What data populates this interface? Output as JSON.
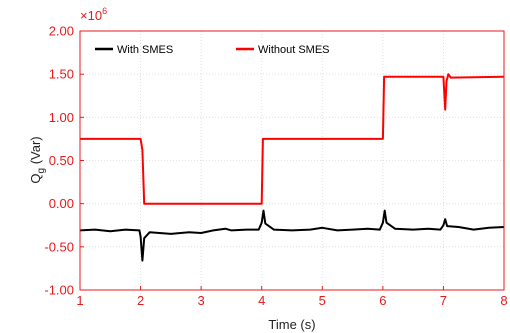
{
  "chart_data": {
    "type": "line",
    "xlabel": "Time (s)",
    "ylabel_main": "Q",
    "ylabel_sub": "g",
    "ylabel_unit": " (Var)",
    "y_multiplier_base": "×10",
    "y_multiplier_exp": "6",
    "xlim": [
      1,
      8
    ],
    "ylim": [
      -1.0,
      2.0
    ],
    "x_ticks": [
      1,
      2,
      3,
      4,
      5,
      6,
      7,
      8
    ],
    "x_tick_labels": [
      "1",
      "2",
      "3",
      "4",
      "5",
      "6",
      "7",
      "8"
    ],
    "y_ticks": [
      -1.0,
      -0.5,
      0.0,
      0.5,
      1.0,
      1.5,
      2.0
    ],
    "y_tick_labels": [
      "-1.00",
      "-0.50",
      "0.00",
      "0.50",
      "1.00",
      "1.50",
      "2.00"
    ],
    "grid": true,
    "legend_position": "top-left",
    "series": [
      {
        "name": "With SMES",
        "color": "#000000",
        "points": [
          [
            1.0,
            -0.31
          ],
          [
            1.25,
            -0.3
          ],
          [
            1.5,
            -0.32
          ],
          [
            1.75,
            -0.3
          ],
          [
            1.98,
            -0.31
          ],
          [
            2.0,
            -0.38
          ],
          [
            2.03,
            -0.66
          ],
          [
            2.06,
            -0.4
          ],
          [
            2.15,
            -0.33
          ],
          [
            2.5,
            -0.35
          ],
          [
            2.8,
            -0.33
          ],
          [
            3.0,
            -0.34
          ],
          [
            3.2,
            -0.31
          ],
          [
            3.4,
            -0.29
          ],
          [
            3.5,
            -0.31
          ],
          [
            3.75,
            -0.3
          ],
          [
            3.95,
            -0.3
          ],
          [
            4.0,
            -0.22
          ],
          [
            4.03,
            -0.08
          ],
          [
            4.06,
            -0.23
          ],
          [
            4.2,
            -0.3
          ],
          [
            4.5,
            -0.31
          ],
          [
            4.8,
            -0.3
          ],
          [
            5.0,
            -0.28
          ],
          [
            5.25,
            -0.31
          ],
          [
            5.5,
            -0.3
          ],
          [
            5.75,
            -0.29
          ],
          [
            5.95,
            -0.3
          ],
          [
            6.0,
            -0.22
          ],
          [
            6.03,
            -0.08
          ],
          [
            6.06,
            -0.22
          ],
          [
            6.2,
            -0.29
          ],
          [
            6.5,
            -0.3
          ],
          [
            6.75,
            -0.29
          ],
          [
            6.95,
            -0.3
          ],
          [
            7.0,
            -0.25
          ],
          [
            7.03,
            -0.18
          ],
          [
            7.06,
            -0.26
          ],
          [
            7.25,
            -0.27
          ],
          [
            7.5,
            -0.3
          ],
          [
            7.75,
            -0.28
          ],
          [
            8.0,
            -0.27
          ]
        ]
      },
      {
        "name": "Without SMES",
        "color": "#ff0000",
        "points": [
          [
            1.0,
            0.75
          ],
          [
            2.0,
            0.75
          ],
          [
            2.03,
            0.62
          ],
          [
            2.06,
            0.0
          ],
          [
            4.0,
            0.0
          ],
          [
            4.02,
            0.75
          ],
          [
            6.0,
            0.75
          ],
          [
            6.02,
            1.47
          ],
          [
            7.0,
            1.47
          ],
          [
            7.03,
            1.09
          ],
          [
            7.05,
            1.42
          ],
          [
            7.08,
            1.5
          ],
          [
            7.12,
            1.46
          ],
          [
            8.0,
            1.47
          ]
        ]
      }
    ]
  }
}
